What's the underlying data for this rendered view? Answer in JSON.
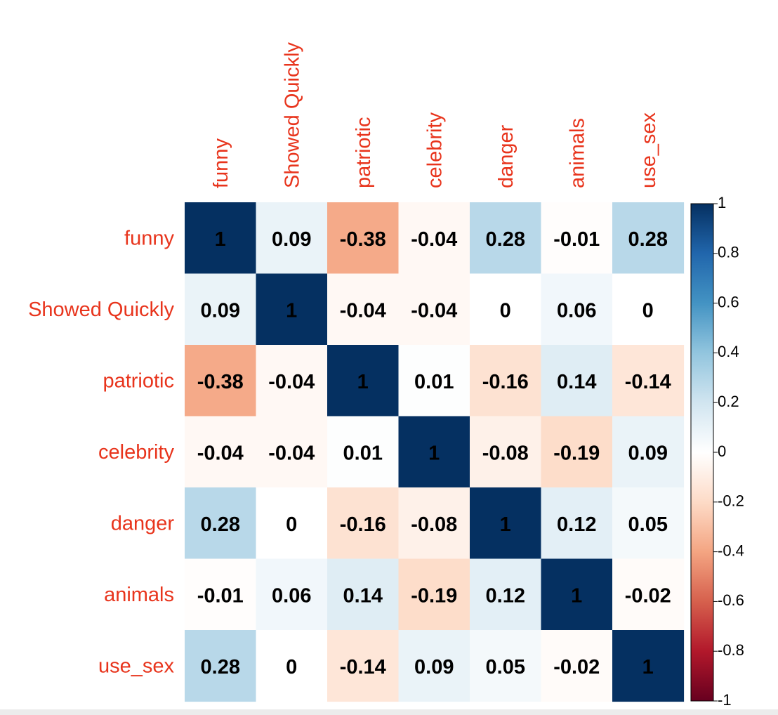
{
  "chart_data": {
    "type": "heatmap",
    "title": "",
    "variables": [
      "funny",
      "Showed Quickly",
      "patriotic",
      "celebrity",
      "danger",
      "animals",
      "use_sex"
    ],
    "matrix": [
      [
        1,
        0.09,
        -0.38,
        -0.04,
        0.28,
        -0.01,
        0.28
      ],
      [
        0.09,
        1,
        -0.04,
        -0.04,
        0,
        0.06,
        0
      ],
      [
        -0.38,
        -0.04,
        1,
        0.01,
        -0.16,
        0.14,
        -0.14
      ],
      [
        -0.04,
        -0.04,
        0.01,
        1,
        -0.08,
        -0.19,
        0.09
      ],
      [
        0.28,
        0,
        -0.16,
        -0.08,
        1,
        0.12,
        0.05
      ],
      [
        -0.01,
        0.06,
        0.14,
        -0.19,
        0.12,
        1,
        -0.02
      ],
      [
        0.28,
        0,
        -0.14,
        0.09,
        0.05,
        -0.02,
        1
      ]
    ],
    "colorbar": {
      "range": [
        -1,
        1
      ],
      "ticks": [
        "1",
        "0.8",
        "0.6",
        "0.4",
        "0.2",
        "0",
        "-0.2",
        "-0.4",
        "-0.6",
        "-0.8",
        "-1"
      ],
      "tick_values": [
        1,
        0.8,
        0.6,
        0.4,
        0.2,
        0,
        -0.2,
        -0.4,
        -0.6,
        -0.8,
        -1
      ],
      "colors": [
        "#67001F",
        "#B2182B",
        "#D6604D",
        "#F4A582",
        "#FDDBC7",
        "#FFFFFF",
        "#D1E5F0",
        "#92C5DE",
        "#4393C3",
        "#2166AC",
        "#053061"
      ]
    },
    "label_color": "#E8341C",
    "value_text_color": "#000000"
  }
}
